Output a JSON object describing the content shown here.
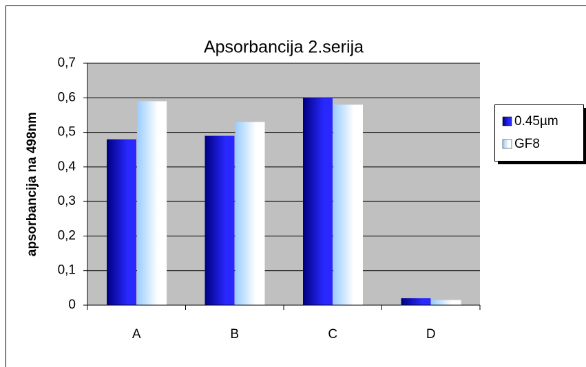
{
  "chart_data": {
    "type": "bar",
    "title": "Apsorbancija  2.serija",
    "y_label": "apsorbancija na 498nm",
    "categories": [
      "A",
      "B",
      "C",
      "D"
    ],
    "series": [
      {
        "name": "0.45µm",
        "color": "#000080",
        "values": [
          0.48,
          0.49,
          0.6,
          0.02
        ]
      },
      {
        "name": "GF8",
        "color": "#99ccff",
        "values": [
          0.59,
          0.53,
          0.58,
          0.015
        ]
      }
    ],
    "ylim": [
      0,
      0.7
    ],
    "yticks": [
      0,
      {
        "value": 0.1,
        "label": "0,1"
      },
      {
        "value": 0.2,
        "label": "0,2"
      },
      {
        "value": 0.3,
        "label": "0,3"
      },
      {
        "value": 0.4,
        "label": "0,4"
      },
      {
        "value": 0.5,
        "label": "0,5"
      },
      {
        "value": 0.6,
        "label": "0,6"
      },
      {
        "value": 0.7,
        "label": "0,7"
      }
    ],
    "grid": true,
    "legend": "right"
  }
}
